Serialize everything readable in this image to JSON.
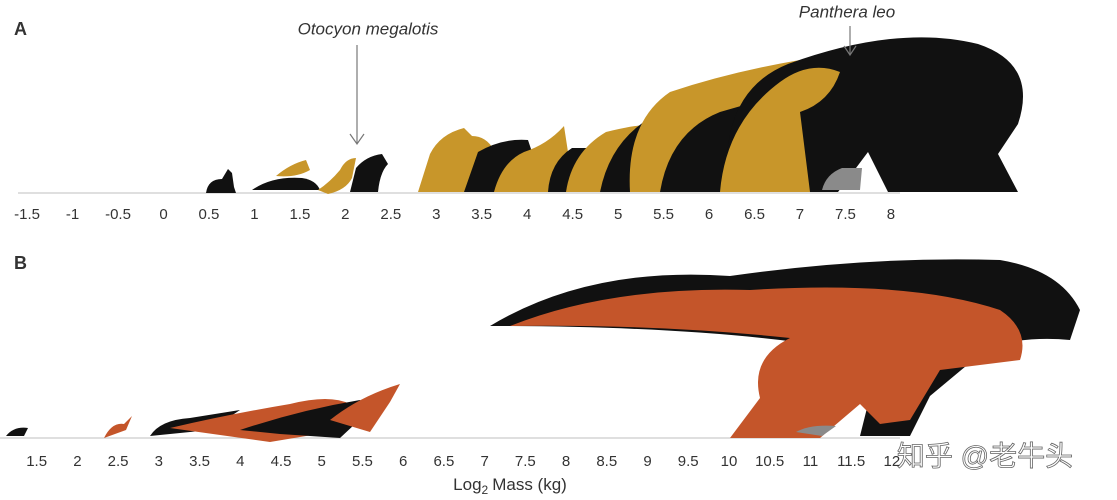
{
  "panels": [
    {
      "label": "A",
      "annotations": [
        "Otocyon megalotis",
        "Panthera leo"
      ],
      "xlim": [
        -1.6,
        8.1
      ],
      "xticks": [
        -1.5,
        -1,
        -0.5,
        0,
        0.5,
        1,
        1.5,
        2,
        2.5,
        3,
        3.5,
        4,
        4.5,
        5,
        5.5,
        6,
        6.5,
        7,
        7.5,
        8
      ]
    },
    {
      "label": "B",
      "xlim": [
        1.05,
        12.1
      ],
      "xticks": [
        1.5,
        2,
        2.5,
        3,
        3.5,
        4,
        4.5,
        5,
        5.5,
        6,
        6.5,
        7,
        7.5,
        8,
        8.5,
        9,
        9.5,
        10,
        10.5,
        11,
        11.5,
        12
      ],
      "xlabel": {
        "main": "Log",
        "sub": "2",
        "rest": "Mass (kg)"
      }
    }
  ],
  "watermark": "知乎 @老牛头"
}
